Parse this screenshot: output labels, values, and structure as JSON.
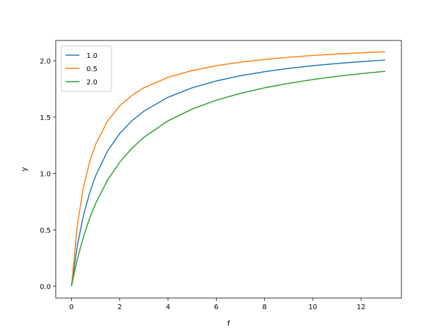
{
  "chart_data": {
    "type": "line",
    "x_label": "f",
    "y_label": "y",
    "x": [
      0,
      0.25,
      0.5,
      0.75,
      1,
      1.5,
      2,
      2.5,
      3,
      4,
      5,
      6,
      7,
      8,
      9,
      10,
      11,
      12,
      13
    ],
    "series": [
      {
        "name": "1.0",
        "color": "#1f77b4",
        "values": [
          0,
          0.367,
          0.629,
          0.825,
          0.978,
          1.2,
          1.354,
          1.467,
          1.553,
          1.676,
          1.76,
          1.821,
          1.867,
          1.903,
          1.932,
          1.956,
          1.976,
          1.992,
          2.007
        ]
      },
      {
        "name": "0.5",
        "color": "#ff7f0e",
        "values": [
          0,
          0.55,
          0.88,
          1.1,
          1.257,
          1.467,
          1.6,
          1.692,
          1.76,
          1.853,
          1.913,
          1.956,
          1.987,
          2.011,
          2.031,
          2.047,
          2.06,
          2.071,
          2.08
        ]
      },
      {
        "name": "2.0",
        "color": "#2ca02c",
        "values": [
          0,
          0.244,
          0.44,
          0.6,
          0.733,
          0.943,
          1.1,
          1.222,
          1.32,
          1.467,
          1.571,
          1.65,
          1.711,
          1.76,
          1.8,
          1.833,
          1.862,
          1.886,
          1.907
        ]
      }
    ],
    "xlim": [
      -0.65,
      13.67
    ],
    "xticks": [
      0,
      2,
      4,
      6,
      8,
      10,
      12
    ],
    "ylim": [
      -0.105,
      2.18
    ],
    "yticks": [
      {
        "value": 0,
        "label": "0.0"
      },
      {
        "value": 0.5,
        "label": "0.5"
      },
      {
        "value": 1,
        "label": "1.0"
      },
      {
        "value": 1.5,
        "label": "1.5"
      },
      {
        "value": 2,
        "label": "2.0"
      }
    ],
    "legend": "upper left",
    "grid": false
  }
}
